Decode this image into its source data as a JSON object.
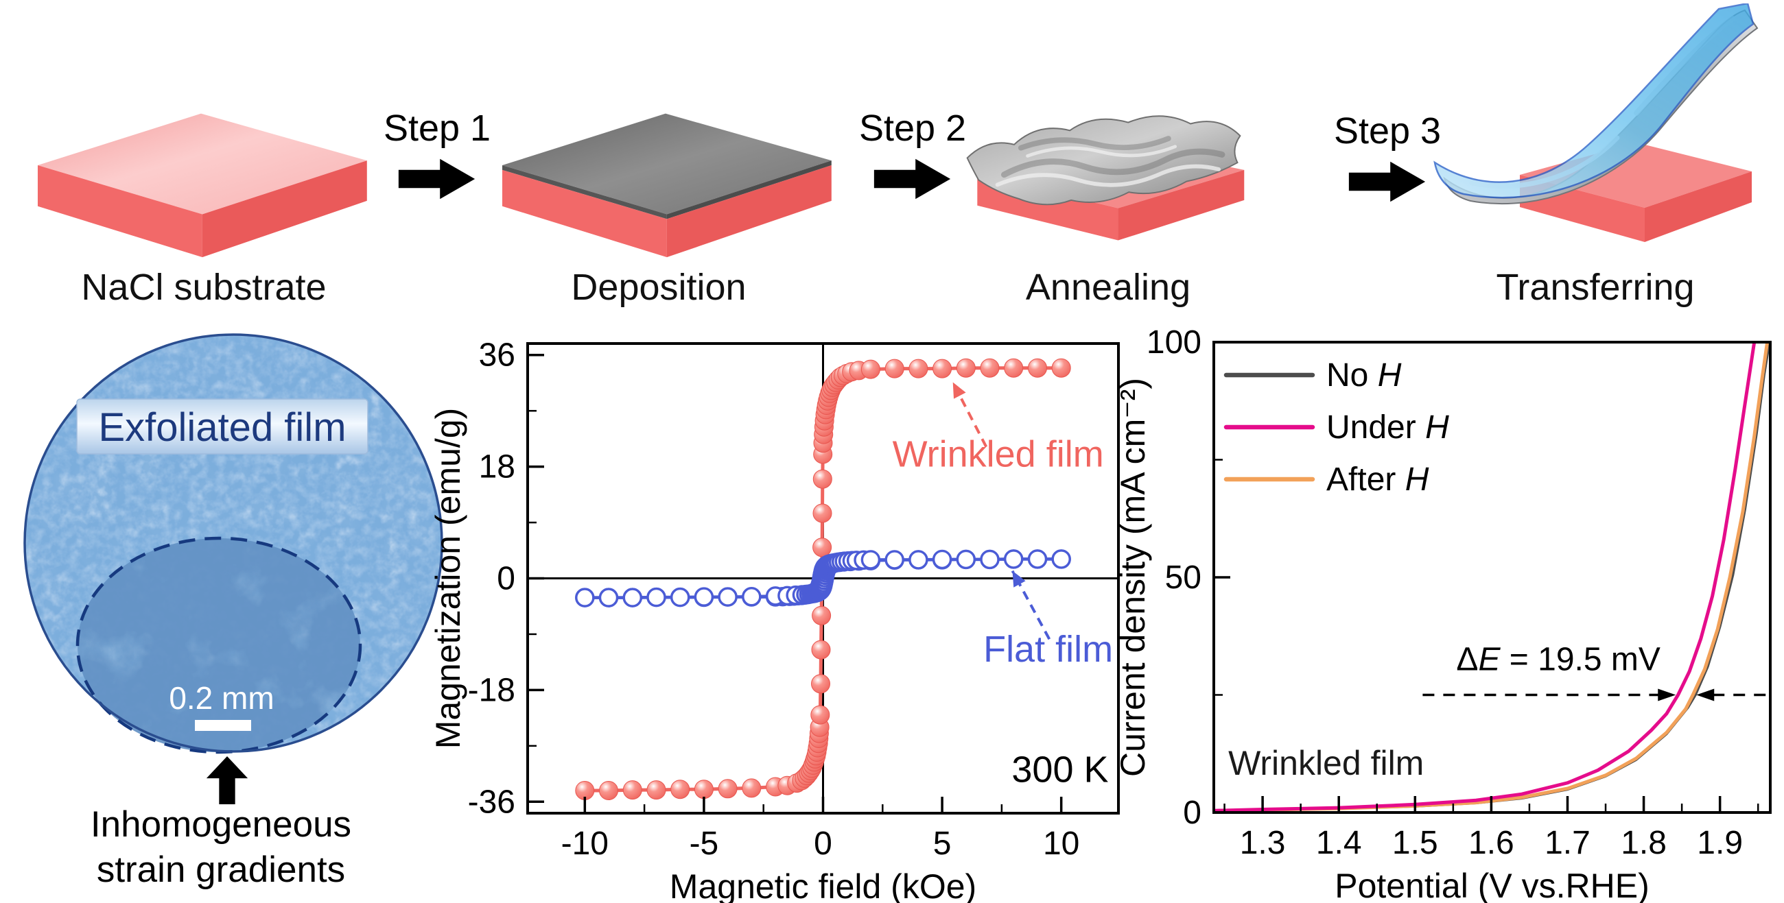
{
  "colors": {
    "background": "#ffffff",
    "substrate_front": "#f26969",
    "substrate_side": "#ea5a5a",
    "substrate_top_light": "#fbc9c9",
    "film_gray": "#7d7d7d",
    "transfer_blue": "#5ec1ef",
    "wrinkled_series": "#f0655f",
    "flat_series": "#4b5cd6",
    "no_h_line": "#4d4d4d",
    "under_h_line": "#e50c8b",
    "after_h_line": "#f2a159",
    "micrograph_label_color": "#1d3a7e",
    "axis_color": "#000000"
  },
  "process_flow": {
    "panels": [
      {
        "label": "NaCl substrate"
      },
      {
        "label": "Deposition"
      },
      {
        "label": "Annealing"
      },
      {
        "label": "Transferring"
      }
    ],
    "steps": [
      {
        "label": "Step 1"
      },
      {
        "label": "Step 2"
      },
      {
        "label": "Step 3"
      }
    ]
  },
  "micrograph": {
    "label": "Exfoliated film",
    "scale_bar": "0.2 mm",
    "caption_line1": "Inhomogeneous",
    "caption_line2": "strain gradients"
  },
  "chart_data": [
    {
      "id": "mh",
      "type": "line",
      "title": "",
      "xlabel": "Magnetic field (kOe)",
      "ylabel": "Magnetization (emu/g)",
      "xlim": [
        -12.4,
        12.4
      ],
      "ylim": [
        -37.85,
        37.85
      ],
      "xticks": [
        -10,
        -5,
        0,
        5,
        10
      ],
      "xtick_labels": [
        "-10",
        "-5",
        "0",
        "5",
        "10"
      ],
      "yticks": [
        -36,
        -18,
        0,
        18,
        36
      ],
      "ytick_labels": [
        "-36",
        "-18",
        "0",
        "18",
        "36"
      ],
      "x_minor": 2.5,
      "y_minor": 9,
      "grid": false,
      "zero_lines": true,
      "series": [
        {
          "name": "Wrinkled film",
          "color": "#f0655f",
          "width": 5,
          "marker": "sphere",
          "marker_size": 13.5,
          "points": [
            [
              -10,
              -34.2
            ],
            [
              -9,
              -34.2
            ],
            [
              -8,
              -34.1
            ],
            [
              -7,
              -34.1
            ],
            [
              -6,
              -34.0
            ],
            [
              -5,
              -34.0
            ],
            [
              -4,
              -33.9
            ],
            [
              -3,
              -33.8
            ],
            [
              -2,
              -33.6
            ],
            [
              -1.5,
              -33.4
            ],
            [
              -1.1,
              -33.0
            ],
            [
              -0.9,
              -32.6
            ],
            [
              -0.78,
              -32.2
            ],
            [
              -0.68,
              -31.8
            ],
            [
              -0.6,
              -31.4
            ],
            [
              -0.53,
              -31.0
            ],
            [
              -0.47,
              -30.6
            ],
            [
              -0.42,
              -30.1
            ],
            [
              -0.37,
              -29.6
            ],
            [
              -0.33,
              -29.1
            ],
            [
              -0.29,
              -28.6
            ],
            [
              -0.26,
              -28.0
            ],
            [
              -0.23,
              -27.3
            ],
            [
              -0.2,
              -26.6
            ],
            [
              -0.18,
              -25.8
            ],
            [
              -0.16,
              -25.0
            ],
            [
              -0.14,
              -24.0
            ],
            [
              -0.12,
              -22.0
            ],
            [
              -0.1,
              -17.0
            ],
            [
              -0.085,
              -11.5
            ],
            [
              -0.07,
              -6.0
            ],
            [
              -0.055,
              -0.5
            ],
            [
              -0.04,
              5.0
            ],
            [
              -0.03,
              10.5
            ],
            [
              -0.02,
              16.0
            ],
            [
              -0.01,
              20.0
            ],
            [
              0,
              21.8
            ],
            [
              0.02,
              23.2
            ],
            [
              0.04,
              24.4
            ],
            [
              0.06,
              25.4
            ],
            [
              0.09,
              26.4
            ],
            [
              0.12,
              27.2
            ],
            [
              0.15,
              27.9
            ],
            [
              0.19,
              28.6
            ],
            [
              0.23,
              29.2
            ],
            [
              0.28,
              29.8
            ],
            [
              0.33,
              30.3
            ],
            [
              0.39,
              30.8
            ],
            [
              0.46,
              31.2
            ],
            [
              0.54,
              31.6
            ],
            [
              0.63,
              32.0
            ],
            [
              0.73,
              32.4
            ],
            [
              0.85,
              32.7
            ],
            [
              1.0,
              33.0
            ],
            [
              1.2,
              33.3
            ],
            [
              1.5,
              33.5
            ],
            [
              2,
              33.7
            ],
            [
              3,
              33.8
            ],
            [
              4,
              33.8
            ],
            [
              5,
              33.8
            ],
            [
              6,
              33.9
            ],
            [
              7,
              33.9
            ],
            [
              8,
              33.9
            ],
            [
              9,
              33.9
            ],
            [
              10,
              33.9
            ]
          ]
        },
        {
          "name": "Flat film",
          "color": "#4b5cd6",
          "width": 4.5,
          "marker": "open",
          "marker_size": 12.5,
          "mirror_segments": true,
          "segments": [
            [
              [
                10,
                3.1
              ],
              [
                9,
                3.1
              ],
              [
                8,
                3.1
              ],
              [
                7,
                3.05
              ],
              [
                6,
                3.05
              ],
              [
                5,
                3.0
              ],
              [
                4,
                3.0
              ],
              [
                3,
                2.95
              ],
              [
                2,
                2.85
              ],
              [
                1.5,
                2.8
              ],
              [
                1.15,
                2.72
              ],
              [
                0.88,
                2.65
              ],
              [
                0.72,
                2.6
              ],
              [
                0.6,
                2.55
              ],
              [
                0.5,
                2.5
              ],
              [
                0.42,
                2.45
              ],
              [
                0.35,
                2.4
              ],
              [
                0.29,
                2.33
              ],
              [
                0.24,
                2.26
              ],
              [
                0.19,
                2.18
              ],
              [
                0.15,
                2.08
              ],
              [
                0.11,
                1.96
              ],
              [
                0.075,
                1.8
              ],
              [
                0.045,
                1.6
              ],
              [
                0.02,
                1.35
              ],
              [
                0,
                1.05
              ],
              [
                -0.02,
                0.7
              ],
              [
                -0.04,
                0.3
              ],
              [
                -0.06,
                -0.1
              ],
              [
                -0.08,
                -0.5
              ],
              [
                -0.105,
                -0.9
              ],
              [
                -0.13,
                -1.25
              ],
              [
                -0.16,
                -1.55
              ],
              [
                -0.2,
                -1.8
              ],
              [
                -0.25,
                -2.0
              ],
              [
                -0.31,
                -2.17
              ],
              [
                -0.38,
                -2.32
              ],
              [
                -0.46,
                -2.44
              ],
              [
                -0.55,
                -2.54
              ],
              [
                -0.65,
                -2.62
              ],
              [
                -0.77,
                -2.69
              ],
              [
                -0.9,
                -2.75
              ],
              [
                -1.05,
                -2.8
              ],
              [
                -1.22,
                -2.85
              ],
              [
                -1.4,
                -2.9
              ],
              [
                -1.7,
                -2.95
              ],
              [
                -2,
                -3.0
              ],
              [
                -3,
                -3.0
              ],
              [
                -4,
                -3.0
              ],
              [
                -5,
                -3.05
              ],
              [
                -6,
                -3.05
              ],
              [
                -7,
                -3.05
              ],
              [
                -8,
                -3.1
              ],
              [
                -9,
                -3.1
              ],
              [
                -10,
                -3.1
              ]
            ]
          ]
        }
      ],
      "annotations": [
        {
          "text": "Wrinkled film",
          "color": "#f0655f",
          "x": 7.35,
          "y": 18.0,
          "anchor": "middle",
          "size": 54
        },
        {
          "text": "Flat film",
          "color": "#4b5cd6",
          "x": 9.45,
          "y": -13.4,
          "anchor": "middle",
          "size": 54
        },
        {
          "text": "300 K",
          "color": "#000000",
          "x": 9.95,
          "y": -32.8,
          "anchor": "middle",
          "size": 54
        }
      ],
      "arrows": [
        {
          "color": "#f0655f",
          "from": [
            6.85,
            21.2
          ],
          "to": [
            5.45,
            31.6
          ]
        },
        {
          "color": "#4b5cd6",
          "from": [
            9.5,
            -9.8
          ],
          "to": [
            7.95,
            1.2
          ]
        }
      ]
    },
    {
      "id": "lsv",
      "type": "line",
      "title": "",
      "xlabel": "Potential (V vs.RHE)",
      "ylabel": "Current density (mA cm⁻²)",
      "xlim": [
        1.236,
        1.966
      ],
      "ylim": [
        0,
        100
      ],
      "xticks": [
        1.3,
        1.4,
        1.5,
        1.6,
        1.7,
        1.8,
        1.9
      ],
      "xtick_labels": [
        "1.3",
        "1.4",
        "1.5",
        "1.6",
        "1.7",
        "1.8",
        "1.9"
      ],
      "yticks": [
        0,
        50,
        100
      ],
      "ytick_labels": [
        "0",
        "50",
        "100"
      ],
      "x_minor": 0.05,
      "y_minor": 25,
      "grid": false,
      "zero_lines": false,
      "legend": [
        {
          "pre": "No ",
          "it": "H",
          "color": "#4d4d4d"
        },
        {
          "pre": "Under ",
          "it": "H",
          "color": "#e50c8b"
        },
        {
          "pre": "After ",
          "it": "H",
          "color": "#f2a159"
        }
      ],
      "series": [
        {
          "name": "No H",
          "color": "#4d4d4d",
          "width": 3.5,
          "points": [
            [
              1.236,
              0.3
            ],
            [
              1.3,
              0.5
            ],
            [
              1.4,
              0.8
            ],
            [
              1.5,
              1.3
            ],
            [
              1.58,
              2.0
            ],
            [
              1.64,
              3.0
            ],
            [
              1.7,
              4.9
            ],
            [
              1.75,
              7.7
            ],
            [
              1.79,
              11.2
            ],
            [
              1.83,
              16.7
            ],
            [
              1.858,
              22.3
            ],
            [
              1.868,
              25.0
            ],
            [
              1.884,
              31.0
            ],
            [
              1.9,
              39.5
            ],
            [
              1.917,
              50.5
            ],
            [
              1.933,
              64.5
            ],
            [
              1.948,
              80.5
            ],
            [
              1.958,
              93.0
            ],
            [
              1.965,
              100
            ]
          ]
        },
        {
          "name": "After H",
          "color": "#f2a159",
          "width": 5,
          "points": [
            [
              1.236,
              0.35
            ],
            [
              1.3,
              0.55
            ],
            [
              1.4,
              0.85
            ],
            [
              1.5,
              1.4
            ],
            [
              1.58,
              2.1
            ],
            [
              1.64,
              3.2
            ],
            [
              1.7,
              5.1
            ],
            [
              1.75,
              7.9
            ],
            [
              1.79,
              11.5
            ],
            [
              1.83,
              17.0
            ],
            [
              1.855,
              22.0
            ],
            [
              1.8645,
              25.0
            ],
            [
              1.88,
              30.5
            ],
            [
              1.897,
              39.0
            ],
            [
              1.913,
              50.0
            ],
            [
              1.93,
              64.0
            ],
            [
              1.945,
              80.0
            ],
            [
              1.955,
              92.0
            ],
            [
              1.962,
              100
            ]
          ]
        },
        {
          "name": "Under H",
          "color": "#e50c8b",
          "width": 5,
          "points": [
            [
              1.236,
              0.4
            ],
            [
              1.3,
              0.65
            ],
            [
              1.4,
              1.0
            ],
            [
              1.5,
              1.7
            ],
            [
              1.58,
              2.6
            ],
            [
              1.64,
              3.9
            ],
            [
              1.7,
              6.3
            ],
            [
              1.74,
              9.0
            ],
            [
              1.78,
              13.0
            ],
            [
              1.81,
              17.5
            ],
            [
              1.83,
              21.0
            ],
            [
              1.845,
              25.0
            ],
            [
              1.86,
              30.0
            ],
            [
              1.875,
              37.0
            ],
            [
              1.89,
              46.0
            ],
            [
              1.905,
              58.0
            ],
            [
              1.92,
              73.0
            ],
            [
              1.932,
              86.0
            ],
            [
              1.945,
              100
            ]
          ]
        }
      ],
      "delta": {
        "y": 25,
        "x_line_start": 1.51,
        "x_arrow_left": 1.842,
        "x_arrow_right": 1.869,
        "x_line_end": 1.966,
        "label": {
          "pre": "Δ",
          "it": "E",
          "post": " = 19.5 mV"
        },
        "label_x": 1.688,
        "label_dy": -36
      },
      "annotations": [
        {
          "text": "Wrinkled film",
          "color": "#1a1a1a",
          "x": 1.255,
          "y": 8.0,
          "anchor": "start",
          "size": 50
        }
      ]
    }
  ]
}
